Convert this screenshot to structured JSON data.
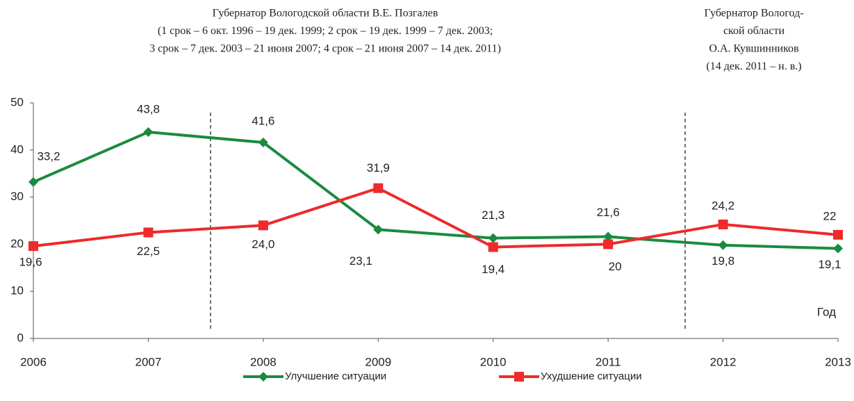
{
  "chart_data": {
    "type": "line",
    "annotations": [
      [
        "Губернатор Вологодской области В.Е. Позгалев",
        "(1 срок – 6 окт. 1996 – 19 дек. 1999; 2 срок  – 19 дек. 1999 – 7 дек. 2003;",
        "3 срок – 7 дек. 2003 – 21 июня 2007;  4 срок – 21 июня 2007 – 14 дек. 2011)"
      ],
      [
        "Губернатор Вологод-",
        "ской области",
        "О.А. Кувшинников",
        "(14 дек. 2011 – н. в.)"
      ]
    ],
    "x_label": "Год",
    "categories": [
      "2006",
      "2007",
      "2008",
      "2009",
      "2010",
      "2011",
      "2012",
      "2013"
    ],
    "series": [
      {
        "name": "Улучшение ситуации",
        "color": "#1b8a3f",
        "marker": "diamond",
        "values": [
          33.2,
          43.8,
          41.6,
          23.1,
          21.3,
          21.6,
          19.8,
          19.1
        ],
        "value_labels": [
          "33,2",
          "43,8",
          "41,6",
          "23,1",
          "21,3",
          "21,6",
          "19,8",
          "19,1"
        ]
      },
      {
        "name": "Ухудшение ситуации",
        "color": "#ee2a2a",
        "marker": "square",
        "values": [
          19.6,
          22.5,
          24.0,
          31.9,
          19.4,
          20,
          24.2,
          22
        ],
        "value_labels": [
          "19,6",
          "22,5",
          "24,0",
          "31,9",
          "19,4",
          "20",
          "24,2",
          "22"
        ]
      }
    ],
    "ylim": [
      0,
      50
    ],
    "yticks": [
      0,
      10,
      20,
      30,
      40,
      50
    ],
    "grid": false,
    "legend": "bottom"
  }
}
